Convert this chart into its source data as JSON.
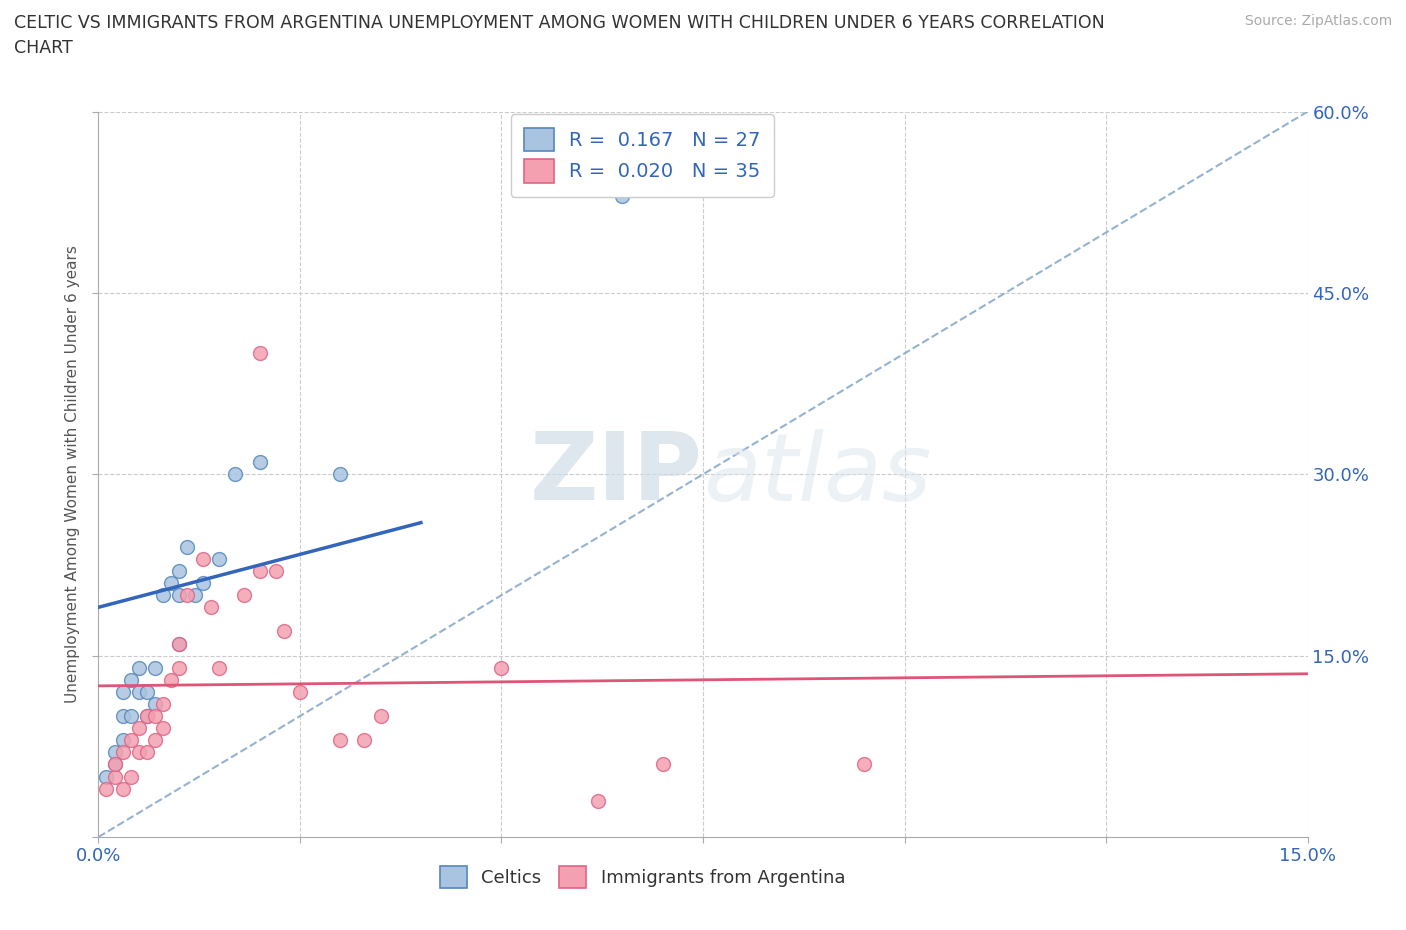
{
  "title": "CELTIC VS IMMIGRANTS FROM ARGENTINA UNEMPLOYMENT AMONG WOMEN WITH CHILDREN UNDER 6 YEARS CORRELATION\nCHART",
  "source_text": "Source: ZipAtlas.com",
  "ylabel": "Unemployment Among Women with Children Under 6 years",
  "xlabel": "",
  "xmin": 0.0,
  "xmax": 0.15,
  "ymin": 0.0,
  "ymax": 0.6,
  "yticks": [
    0.0,
    0.15,
    0.3,
    0.45,
    0.6
  ],
  "ytick_labels": [
    "",
    "15.0%",
    "30.0%",
    "45.0%",
    "60.0%"
  ],
  "xticks": [
    0.0,
    0.025,
    0.05,
    0.075,
    0.1,
    0.125,
    0.15
  ],
  "xtick_labels": [
    "0.0%",
    "",
    "",
    "",
    "",
    "",
    "15.0%"
  ],
  "celtics_color": "#a8c4e0",
  "argentina_color": "#f4a0b0",
  "celtics_edge_color": "#5588bb",
  "argentina_edge_color": "#dd6688",
  "trend_line_celtics_color": "#3366bb",
  "trend_line_argentina_color": "#dd5577",
  "diag_line_color": "#88aacc",
  "R_celtics": 0.167,
  "N_celtics": 27,
  "R_argentina": 0.02,
  "N_argentina": 35,
  "legend_x_celtics": "Celtics",
  "legend_x_argentina": "Immigrants from Argentina",
  "watermark_zip": "ZIP",
  "watermark_atlas": "atlas",
  "background_color": "#ffffff",
  "celtics_x": [
    0.001,
    0.002,
    0.002,
    0.003,
    0.003,
    0.003,
    0.004,
    0.004,
    0.005,
    0.005,
    0.006,
    0.006,
    0.007,
    0.007,
    0.008,
    0.009,
    0.01,
    0.01,
    0.011,
    0.012,
    0.013,
    0.015,
    0.017,
    0.02,
    0.03,
    0.065,
    0.01
  ],
  "celtics_y": [
    0.05,
    0.06,
    0.07,
    0.08,
    0.1,
    0.12,
    0.1,
    0.13,
    0.12,
    0.14,
    0.1,
    0.12,
    0.11,
    0.14,
    0.2,
    0.21,
    0.2,
    0.22,
    0.24,
    0.2,
    0.21,
    0.23,
    0.3,
    0.31,
    0.3,
    0.53,
    0.16
  ],
  "argentina_x": [
    0.001,
    0.002,
    0.002,
    0.003,
    0.003,
    0.004,
    0.004,
    0.005,
    0.005,
    0.006,
    0.006,
    0.007,
    0.007,
    0.008,
    0.008,
    0.009,
    0.01,
    0.01,
    0.011,
    0.013,
    0.014,
    0.015,
    0.018,
    0.02,
    0.022,
    0.023,
    0.025,
    0.03,
    0.033,
    0.035,
    0.05,
    0.062,
    0.07,
    0.095,
    0.02
  ],
  "argentina_y": [
    0.04,
    0.05,
    0.06,
    0.04,
    0.07,
    0.05,
    0.08,
    0.07,
    0.09,
    0.07,
    0.1,
    0.08,
    0.1,
    0.09,
    0.11,
    0.13,
    0.14,
    0.16,
    0.2,
    0.23,
    0.19,
    0.14,
    0.2,
    0.22,
    0.22,
    0.17,
    0.12,
    0.08,
    0.08,
    0.1,
    0.14,
    0.03,
    0.06,
    0.06,
    0.4
  ],
  "celtics_trend_x0": 0.0,
  "celtics_trend_y0": 0.19,
  "celtics_trend_x1": 0.04,
  "celtics_trend_y1": 0.26,
  "argentina_trend_x0": 0.0,
  "argentina_trend_y0": 0.125,
  "argentina_trend_x1": 0.15,
  "argentina_trend_y1": 0.135,
  "marker_size": 100
}
